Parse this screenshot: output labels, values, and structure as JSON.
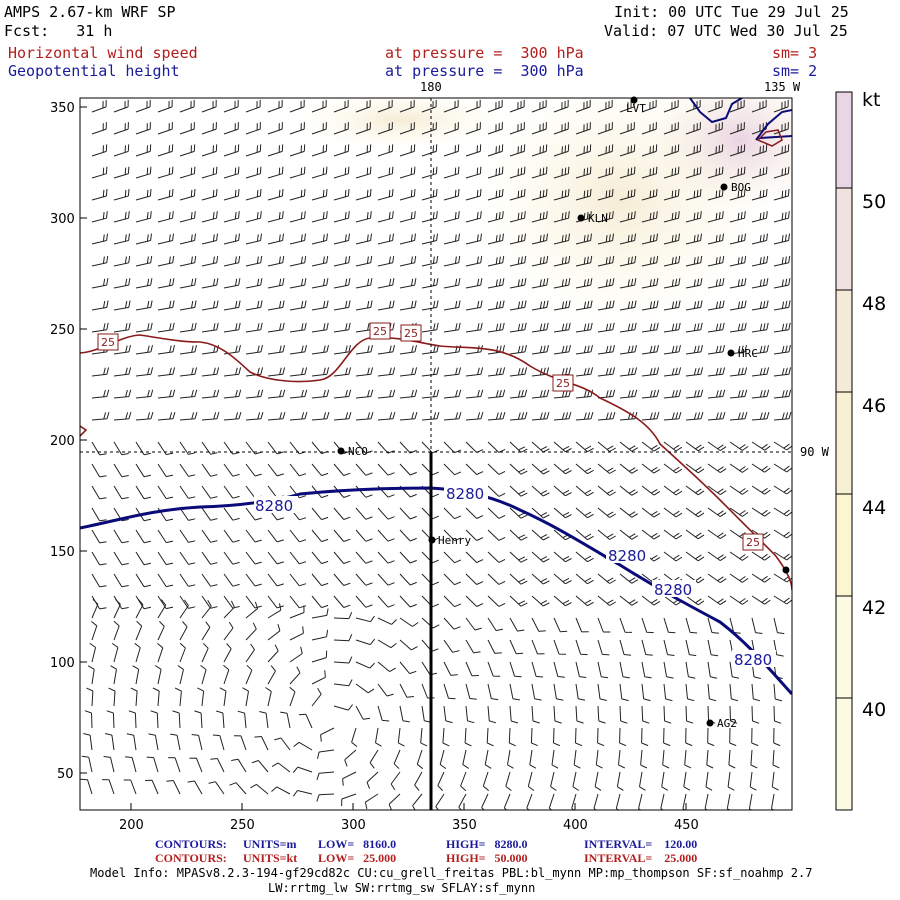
{
  "header": {
    "title": "AMPS 2.67-km WRF SP",
    "fcst": "Fcst:   31 h",
    "init": "Init: 00 UTC Tue 29 Jul 25",
    "valid": "Valid: 07 UTC Wed 30 Jul 25",
    "field1": "Horizontal wind speed",
    "field2": "Geopotential height",
    "pressure1": "at pressure =  300 hPa",
    "pressure2": "at pressure =  300 hPa",
    "sm1": "sm= 3",
    "sm2": "sm= 2"
  },
  "map": {
    "top_lon_labels": [
      "180",
      "135 W"
    ],
    "side_lon_label": "90 W",
    "x_ticks": [
      "200",
      "250",
      "300",
      "350",
      "400",
      "450"
    ],
    "y_ticks": [
      "350",
      "300",
      "250",
      "200",
      "150",
      "100",
      "50"
    ],
    "stations": [
      "LVT",
      "BOG",
      "KLN",
      "HRC",
      "NCO",
      "Henry",
      "AG2"
    ],
    "height_contour_label": "8280",
    "wind_contour_label": "25"
  },
  "colorbar": {
    "unit": "kt",
    "labels": [
      "50",
      "48",
      "46",
      "44",
      "42",
      "40"
    ],
    "colors": [
      "#e8d6e6",
      "#f0e2e0",
      "#f5ebd9",
      "#f8f0d2",
      "#fbf5d0",
      "#fdfae4"
    ]
  },
  "footer": {
    "c1_label": "CONTOURS:",
    "c1_units": "UNITS=m",
    "c1_low": "LOW=   8160.0",
    "c1_high": "HIGH=   8280.0",
    "c1_int": "INTERVAL=    120.00",
    "c2_label": "CONTOURS:",
    "c2_units": "UNITS=kt",
    "c2_low": "LOW=   25.000",
    "c2_high": "HIGH=   50.000",
    "c2_int": "INTERVAL=    25.000",
    "model_info_1": "Model Info: MPASv8.2.3-194-gf29cd82c CU:cu_grell_freitas PBL:bl_mynn MP:mp_thompson SF:sf_noahmp 2.7",
    "model_info_2": "LW:rrtmg_lw SW:rrtmg_sw SFLAY:sf_mynn"
  },
  "colors": {
    "wind_contour": "#8b1a1a",
    "height_contour": "#0a0a78",
    "coast": "#0a0a78"
  }
}
